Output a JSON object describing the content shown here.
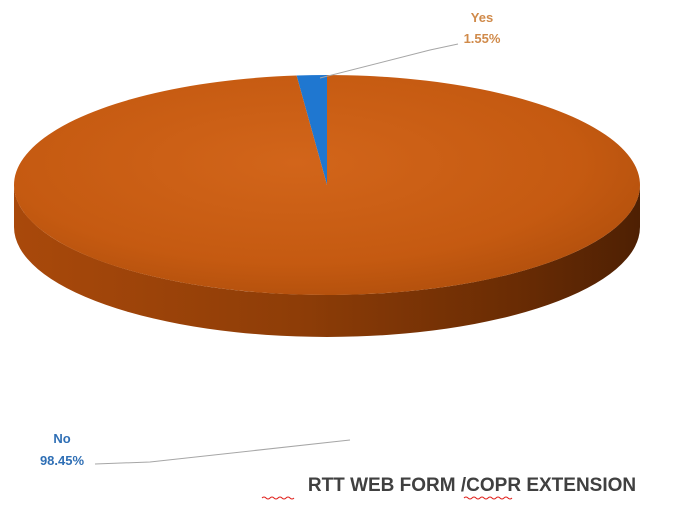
{
  "chart_data": {
    "type": "pie",
    "style": "3d",
    "title": "RTT WEB FORM /COPR EXTENSION",
    "slices": [
      {
        "label": "Yes",
        "value": 1.55,
        "value_label": "1.55%",
        "color": "#1f77d0"
      },
      {
        "label": "No",
        "value": 98.45,
        "value_label": "98.45%",
        "color": "#c55a11"
      }
    ],
    "label_colors": {
      "Yes": "#d08a4a",
      "No": "#2f6fb5"
    },
    "legend": "none"
  }
}
